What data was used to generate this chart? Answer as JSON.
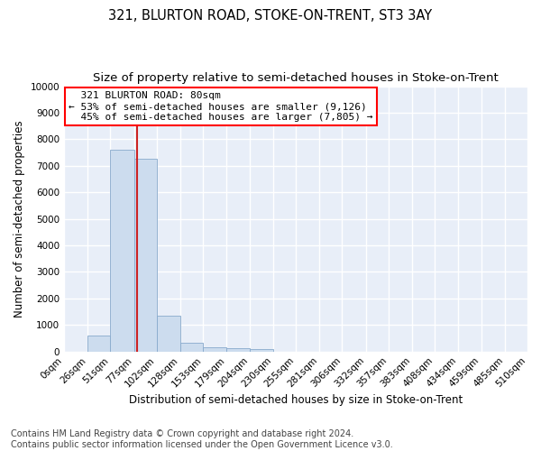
{
  "title": "321, BLURTON ROAD, STOKE-ON-TRENT, ST3 3AY",
  "subtitle": "Size of property relative to semi-detached houses in Stoke-on-Trent",
  "xlabel": "Distribution of semi-detached houses by size in Stoke-on-Trent",
  "ylabel": "Number of semi-detached properties",
  "footer": "Contains HM Land Registry data © Crown copyright and database right 2024.\nContains public sector information licensed under the Open Government Licence v3.0.",
  "bin_labels": [
    "0sqm",
    "26sqm",
    "51sqm",
    "77sqm",
    "102sqm",
    "128sqm",
    "153sqm",
    "179sqm",
    "204sqm",
    "230sqm",
    "255sqm",
    "281sqm",
    "306sqm",
    "332sqm",
    "357sqm",
    "383sqm",
    "408sqm",
    "434sqm",
    "459sqm",
    "485sqm",
    "510sqm"
  ],
  "bin_edges": [
    0,
    26,
    51,
    77,
    102,
    128,
    153,
    179,
    204,
    230,
    255,
    281,
    306,
    332,
    357,
    383,
    408,
    434,
    459,
    485,
    510
  ],
  "bar_heights": [
    0,
    600,
    7600,
    7250,
    1350,
    320,
    150,
    130,
    100,
    0,
    0,
    0,
    0,
    0,
    0,
    0,
    0,
    0,
    0,
    0
  ],
  "bar_color": "#ccdcee",
  "bar_edge_color": "#88aacc",
  "property_size": 80,
  "property_label": "321 BLURTON ROAD: 80sqm",
  "smaller_pct": 53,
  "smaller_count": 9126,
  "larger_pct": 45,
  "larger_count": 7805,
  "vline_color": "#cc2222",
  "ylim": [
    0,
    10000
  ],
  "yticks": [
    0,
    1000,
    2000,
    3000,
    4000,
    5000,
    6000,
    7000,
    8000,
    9000,
    10000
  ],
  "background_color": "#ffffff",
  "plot_bg_color": "#e8eef8",
  "grid_color": "#ffffff",
  "title_fontsize": 10.5,
  "subtitle_fontsize": 9.5,
  "axis_label_fontsize": 8.5,
  "tick_fontsize": 7.5,
  "footer_fontsize": 7,
  "ann_fontsize": 8
}
